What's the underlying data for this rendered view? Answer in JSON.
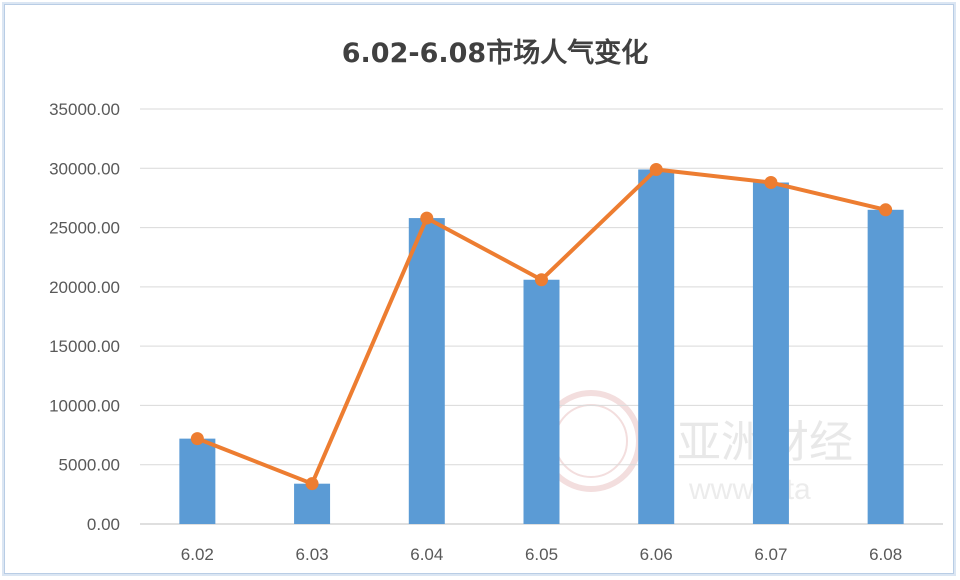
{
  "chart_data": {
    "type": "bar",
    "title": "6.02-6.08市场人气变化",
    "xlabel": "",
    "ylabel": "",
    "categories": [
      "6.02",
      "6.03",
      "6.04",
      "6.05",
      "6.06",
      "6.07",
      "6.08"
    ],
    "series": [
      {
        "type": "bar",
        "color": "#5b9bd5",
        "values": [
          7200,
          3400,
          25800,
          20600,
          29900,
          28800,
          26500
        ]
      },
      {
        "type": "line",
        "color": "#ed7d31",
        "values": [
          7200,
          3400,
          25800,
          20600,
          29900,
          28800,
          26500
        ]
      }
    ],
    "yticks": [
      "0.00",
      "5000.00",
      "10000.00",
      "15000.00",
      "20000.00",
      "25000.00",
      "30000.00",
      "35000.00"
    ],
    "ylim": [
      0,
      35000
    ],
    "grid": true,
    "legend": "none"
  },
  "watermark": {
    "logo_text": "亚洲财经",
    "url_text": "www.afta"
  }
}
